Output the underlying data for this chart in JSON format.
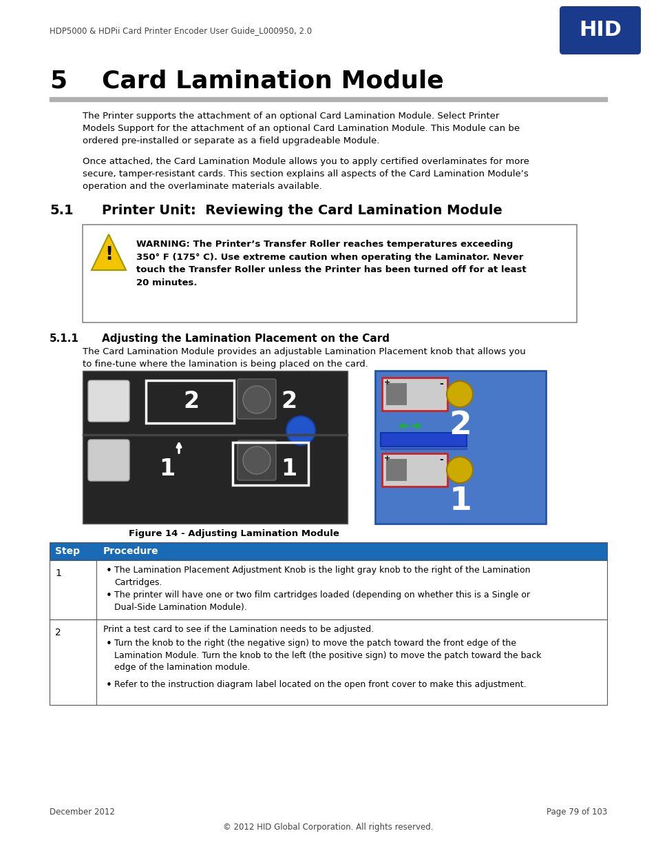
{
  "header_text": "HDP5000 & HDPii Card Printer Encoder User Guide_L000950, 2.0",
  "chapter_num": "5",
  "chapter_title": "Card Lamination Module",
  "section_num": "5.1",
  "section_title": "Printer Unit:  Reviewing the Card Lamination Module",
  "subsection_num": "5.1.1",
  "subsection_title": "Adjusting the Lamination Placement on the Card",
  "subsection_body_line1": "The Card Lamination Module provides an adjustable Lamination Placement knob that allows you",
  "subsection_body_line2": "to fine-tune where the lamination is being placed on the card.",
  "para1_line1": "The Printer supports the attachment of an optional Card Lamination Module. Select Printer",
  "para1_line2": "Models Support for the attachment of an optional Card Lamination Module. This Module can be",
  "para1_line3": "ordered pre-installed or separate as a field upgradeable Module.",
  "para2_line1": "Once attached, the Card Lamination Module allows you to apply certified overlaminates for more",
  "para2_line2": "secure, tamper-resistant cards. This section explains all aspects of the Card Lamination Module’s",
  "para2_line3": "operation and the overlaminate materials available.",
  "warning_line1": "WARNING: The Printer’s Transfer Roller reaches temperatures exceeding",
  "warning_line2": "350° F (175° C). Use extreme caution when operating the Laminator. Never",
  "warning_line3": "touch the Transfer Roller unless the Printer has been turned off for at least",
  "warning_line4": "20 minutes.",
  "figure_caption": "Figure 14 - Adjusting Lamination Module",
  "table_header_step": "Step",
  "table_header_procedure": "Procedure",
  "table_row1_step": "1",
  "table_row1_b1_l1": "The Lamination Placement Adjustment Knob is the light gray knob to the right of the Lamination",
  "table_row1_b1_l2": "Cartridges.",
  "table_row1_b2_l1": "The printer will have one or two film cartridges loaded (depending on whether this is a Single or",
  "table_row1_b2_l2": "Dual-Side Lamination Module).",
  "table_row2_step": "2",
  "table_row2_main": "Print a test card to see if the Lamination needs to be adjusted.",
  "table_row2_b1_l1": "Turn the knob to the right (the negative sign) to move the patch toward the front edge of the",
  "table_row2_b1_l2": "Lamination Module. Turn the knob to the left (the positive sign) to move the patch toward the back",
  "table_row2_b1_l3": "edge of the lamination module.",
  "table_row2_b2": "Refer to the instruction diagram label located on the open front cover to make this adjustment.",
  "footer_left": "December 2012",
  "footer_right": "Page 79 of 103",
  "footer_center": "© 2012 HID Global Corporation. All rights reserved.",
  "hid_blue": "#1a3a8c",
  "table_header_bg": "#1a6bb5",
  "hr_color": "#b0b0b0",
  "header_text_color": "#444444"
}
